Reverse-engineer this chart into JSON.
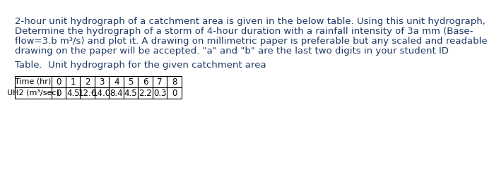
{
  "paragraph_lines": [
    "2-hour unit hydrograph of a catchment area is given in the below table. Using this unit hydrograph,",
    "Determine the hydrograph of a storm of 4-hour duration with a rainfall intensity of 3a mm (Base-",
    "flow=3.b m³/s) and plot it. A drawing on millimetric paper is preferable but any scaled and readable",
    "drawing on the paper will be accepted. \"a\" and \"b\" are the last two digits in your student ID"
  ],
  "table_title": "Table.  Unit hydrograph for the given catchment area",
  "col_headers": [
    "Time (hr)",
    "0",
    "1",
    "2",
    "3",
    "4",
    "5",
    "6",
    "7",
    "8"
  ],
  "row_label": "UH2 (m³/sec)",
  "row_values": [
    "0",
    "4.5",
    "12.6",
    "14.0",
    "8.4",
    "4.5",
    "2.2",
    "0.3",
    "0"
  ],
  "text_color": "#1f3864",
  "table_border_color": "#000000",
  "background_color": "#ffffff",
  "font_size_para": 9.5,
  "font_size_table": 8.5,
  "font_size_title": 9.5
}
